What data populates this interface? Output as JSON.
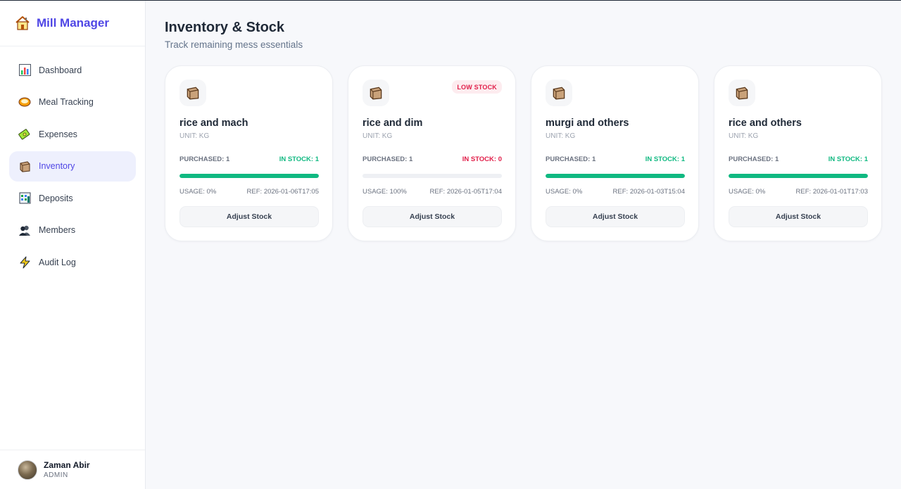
{
  "app": {
    "title": "Mill Manager",
    "brand_icon": "house-icon"
  },
  "sidebar": {
    "items": [
      {
        "label": "Dashboard",
        "icon": "bar-chart-icon",
        "active": false
      },
      {
        "label": "Meal Tracking",
        "icon": "meal-bowl-icon",
        "active": false
      },
      {
        "label": "Expenses",
        "icon": "money-icon",
        "active": false
      },
      {
        "label": "Inventory",
        "icon": "package-icon",
        "active": true
      },
      {
        "label": "Deposits",
        "icon": "bank-icon",
        "active": false
      },
      {
        "label": "Members",
        "icon": "members-icon",
        "active": false
      },
      {
        "label": "Audit Log",
        "icon": "lightning-icon",
        "active": false
      }
    ]
  },
  "user": {
    "name": "Zaman Abir",
    "role": "ADMIN"
  },
  "page": {
    "title": "Inventory & Stock",
    "subtitle": "Track remaining mess essentials"
  },
  "inventory": [
    {
      "name": "rice and mach",
      "unit": "UNIT: KG",
      "purchased": "PURCHASED: 1",
      "in_stock": "IN STOCK: 1",
      "usage": "USAGE: 0%",
      "ref": "REF: 2026-01-06T17:05",
      "badge": "",
      "stock_fraction": 1.0,
      "button": "Adjust Stock",
      "status": "ok"
    },
    {
      "name": "rice and dim",
      "unit": "UNIT: KG",
      "purchased": "PURCHASED: 1",
      "in_stock": "IN STOCK: 0",
      "usage": "USAGE: 100%",
      "ref": "REF: 2026-01-05T17:04",
      "badge": "LOW STOCK",
      "stock_fraction": 0.0,
      "button": "Adjust Stock",
      "status": "low"
    },
    {
      "name": "murgi and others",
      "unit": "UNIT: KG",
      "purchased": "PURCHASED: 1",
      "in_stock": "IN STOCK: 1",
      "usage": "USAGE: 0%",
      "ref": "REF: 2026-01-03T15:04",
      "badge": "",
      "stock_fraction": 1.0,
      "button": "Adjust Stock",
      "status": "ok"
    },
    {
      "name": "rice and others",
      "unit": "UNIT: KG",
      "purchased": "PURCHASED: 1",
      "in_stock": "IN STOCK: 1",
      "usage": "USAGE: 0%",
      "ref": "REF: 2026-01-01T17:03",
      "badge": "",
      "stock_fraction": 1.0,
      "button": "Adjust Stock",
      "status": "ok"
    }
  ],
  "colors": {
    "accent": "#4f46e5",
    "ok": "#10b981",
    "low": "#e11d48"
  }
}
